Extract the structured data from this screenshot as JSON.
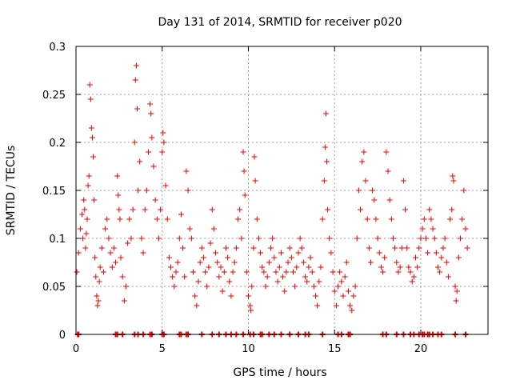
{
  "chart_data": {
    "type": "scatter",
    "title": "Day 131 of 2014, SRMTID for receiver p020",
    "xlabel": "GPS time / hours",
    "ylabel": "SRMTID / TECUs",
    "xlim": [
      0,
      23.9
    ],
    "ylim": [
      0,
      0.3
    ],
    "xticks": [
      0,
      5,
      10,
      15,
      20
    ],
    "xtick_labels": [
      "0",
      "5",
      "10",
      "15",
      "20"
    ],
    "yticks": [
      0,
      0.05,
      0.1,
      0.15,
      0.2,
      0.25,
      0.3
    ],
    "ytick_labels": [
      "0",
      "0.05",
      "0.1",
      "0.15",
      "0.2",
      "0.25",
      "0.3"
    ],
    "grid": true,
    "marker": "+",
    "color": "#ee0000",
    "series": [
      {
        "name": "SRMTID",
        "points": [
          [
            0.05,
            0.065
          ],
          [
            0.15,
            0.085
          ],
          [
            0.25,
            0.11
          ],
          [
            0.35,
            0.125
          ],
          [
            0.4,
            0.1
          ],
          [
            0.45,
            0.14
          ],
          [
            0.5,
            0.13
          ],
          [
            0.55,
            0.09
          ],
          [
            0.6,
            0.105
          ],
          [
            0.65,
            0.12
          ],
          [
            0.7,
            0.155
          ],
          [
            0.75,
            0.165
          ],
          [
            0.8,
            0.26
          ],
          [
            0.85,
            0.245
          ],
          [
            0.9,
            0.215
          ],
          [
            0.95,
            0.205
          ],
          [
            1.0,
            0.185
          ],
          [
            1.05,
            0.14
          ],
          [
            1.1,
            0.08
          ],
          [
            1.15,
            0.06
          ],
          [
            1.2,
            0.04
          ],
          [
            1.25,
            0.03
          ],
          [
            1.3,
            0.035
          ],
          [
            1.35,
            0.055
          ],
          [
            1.4,
            0.07
          ],
          [
            1.5,
            0.09
          ],
          [
            1.6,
            0.065
          ],
          [
            1.7,
            0.11
          ],
          [
            1.8,
            0.12
          ],
          [
            1.9,
            0.1
          ],
          [
            2.0,
            0.085
          ],
          [
            2.1,
            0.07
          ],
          [
            2.2,
            0.09
          ],
          [
            2.3,
            0.075
          ],
          [
            2.4,
            0.165
          ],
          [
            2.45,
            0.145
          ],
          [
            2.5,
            0.13
          ],
          [
            2.55,
            0.12
          ],
          [
            2.6,
            0.08
          ],
          [
            2.7,
            0.06
          ],
          [
            2.8,
            0.035
          ],
          [
            2.9,
            0.05
          ],
          [
            3.0,
            0.095
          ],
          [
            3.1,
            0.12
          ],
          [
            3.2,
            0.1
          ],
          [
            3.3,
            0.13
          ],
          [
            3.4,
            0.2
          ],
          [
            3.45,
            0.265
          ],
          [
            3.5,
            0.28
          ],
          [
            3.55,
            0.235
          ],
          [
            3.6,
            0.15
          ],
          [
            3.7,
            0.18
          ],
          [
            3.8,
            0.1
          ],
          [
            3.9,
            0.085
          ],
          [
            4.0,
            0.13
          ],
          [
            4.1,
            0.15
          ],
          [
            4.2,
            0.19
          ],
          [
            4.3,
            0.24
          ],
          [
            4.35,
            0.23
          ],
          [
            4.4,
            0.205
          ],
          [
            4.5,
            0.175
          ],
          [
            4.6,
            0.14
          ],
          [
            4.7,
            0.12
          ],
          [
            4.8,
            0.1
          ],
          [
            4.9,
            0.13
          ],
          [
            5.0,
            0.19
          ],
          [
            5.05,
            0.21
          ],
          [
            5.1,
            0.2
          ],
          [
            5.2,
            0.155
          ],
          [
            5.3,
            0.12
          ],
          [
            5.4,
            0.08
          ],
          [
            5.5,
            0.07
          ],
          [
            5.6,
            0.06
          ],
          [
            5.7,
            0.05
          ],
          [
            5.8,
            0.065
          ],
          [
            5.9,
            0.075
          ],
          [
            6.0,
            0.1
          ],
          [
            6.1,
            0.125
          ],
          [
            6.2,
            0.09
          ],
          [
            6.3,
            0.06
          ],
          [
            6.4,
            0.17
          ],
          [
            6.5,
            0.15
          ],
          [
            6.6,
            0.11
          ],
          [
            6.7,
            0.1
          ],
          [
            6.8,
            0.065
          ],
          [
            6.9,
            0.04
          ],
          [
            7.0,
            0.03
          ],
          [
            7.1,
            0.055
          ],
          [
            7.2,
            0.075
          ],
          [
            7.3,
            0.09
          ],
          [
            7.4,
            0.08
          ],
          [
            7.5,
            0.065
          ],
          [
            7.6,
            0.05
          ],
          [
            7.7,
            0.07
          ],
          [
            7.8,
            0.095
          ],
          [
            7.9,
            0.13
          ],
          [
            8.0,
            0.11
          ],
          [
            8.1,
            0.085
          ],
          [
            8.2,
            0.075
          ],
          [
            8.3,
            0.06
          ],
          [
            8.4,
            0.07
          ],
          [
            8.5,
            0.045
          ],
          [
            8.6,
            0.065
          ],
          [
            8.7,
            0.09
          ],
          [
            8.8,
            0.08
          ],
          [
            8.9,
            0.055
          ],
          [
            9.0,
            0.04
          ],
          [
            9.1,
            0.065
          ],
          [
            9.2,
            0.075
          ],
          [
            9.3,
            0.09
          ],
          [
            9.4,
            0.12
          ],
          [
            9.5,
            0.13
          ],
          [
            9.6,
            0.1
          ],
          [
            9.7,
            0.19
          ],
          [
            9.75,
            0.17
          ],
          [
            9.8,
            0.145
          ],
          [
            9.9,
            0.065
          ],
          [
            10.0,
            0.04
          ],
          [
            10.1,
            0.03
          ],
          [
            10.15,
            0.025
          ],
          [
            10.2,
            0.05
          ],
          [
            10.3,
            0.09
          ],
          [
            10.35,
            0.185
          ],
          [
            10.4,
            0.16
          ],
          [
            10.5,
            0.12
          ],
          [
            10.6,
            0.1
          ],
          [
            10.7,
            0.085
          ],
          [
            10.8,
            0.07
          ],
          [
            10.9,
            0.065
          ],
          [
            11.0,
            0.05
          ],
          [
            11.1,
            0.06
          ],
          [
            11.2,
            0.075
          ],
          [
            11.3,
            0.09
          ],
          [
            11.4,
            0.1
          ],
          [
            11.5,
            0.08
          ],
          [
            11.6,
            0.065
          ],
          [
            11.7,
            0.055
          ],
          [
            11.8,
            0.07
          ],
          [
            11.9,
            0.085
          ],
          [
            12.0,
            0.06
          ],
          [
            12.1,
            0.045
          ],
          [
            12.2,
            0.065
          ],
          [
            12.3,
            0.075
          ],
          [
            12.4,
            0.09
          ],
          [
            12.5,
            0.08
          ],
          [
            12.6,
            0.065
          ],
          [
            12.7,
            0.05
          ],
          [
            12.8,
            0.07
          ],
          [
            12.9,
            0.085
          ],
          [
            13.0,
            0.1
          ],
          [
            13.1,
            0.09
          ],
          [
            13.2,
            0.075
          ],
          [
            13.3,
            0.06
          ],
          [
            13.4,
            0.055
          ],
          [
            13.5,
            0.07
          ],
          [
            13.6,
            0.08
          ],
          [
            13.7,
            0.065
          ],
          [
            13.8,
            0.05
          ],
          [
            13.9,
            0.04
          ],
          [
            14.0,
            0.03
          ],
          [
            14.1,
            0.055
          ],
          [
            14.2,
            0.07
          ],
          [
            14.3,
            0.12
          ],
          [
            14.4,
            0.16
          ],
          [
            14.45,
            0.195
          ],
          [
            14.5,
            0.23
          ],
          [
            14.55,
            0.18
          ],
          [
            14.6,
            0.13
          ],
          [
            14.7,
            0.1
          ],
          [
            14.8,
            0.085
          ],
          [
            14.9,
            0.065
          ],
          [
            15.0,
            0.045
          ],
          [
            15.1,
            0.03
          ],
          [
            15.2,
            0.05
          ],
          [
            15.3,
            0.065
          ],
          [
            15.4,
            0.055
          ],
          [
            15.5,
            0.04
          ],
          [
            15.6,
            0.06
          ],
          [
            15.7,
            0.075
          ],
          [
            15.8,
            0.045
          ],
          [
            15.9,
            0.03
          ],
          [
            16.0,
            0.025
          ],
          [
            16.1,
            0.04
          ],
          [
            16.2,
            0.05
          ],
          [
            16.3,
            0.1
          ],
          [
            16.4,
            0.15
          ],
          [
            16.5,
            0.13
          ],
          [
            16.6,
            0.18
          ],
          [
            16.7,
            0.19
          ],
          [
            16.8,
            0.16
          ],
          [
            16.9,
            0.12
          ],
          [
            17.0,
            0.09
          ],
          [
            17.1,
            0.075
          ],
          [
            17.2,
            0.15
          ],
          [
            17.3,
            0.14
          ],
          [
            17.4,
            0.12
          ],
          [
            17.5,
            0.1
          ],
          [
            17.6,
            0.085
          ],
          [
            17.7,
            0.07
          ],
          [
            17.8,
            0.065
          ],
          [
            17.9,
            0.08
          ],
          [
            18.0,
            0.19
          ],
          [
            18.1,
            0.17
          ],
          [
            18.2,
            0.14
          ],
          [
            18.3,
            0.12
          ],
          [
            18.4,
            0.1
          ],
          [
            18.5,
            0.09
          ],
          [
            18.6,
            0.075
          ],
          [
            18.7,
            0.065
          ],
          [
            18.8,
            0.07
          ],
          [
            18.9,
            0.09
          ],
          [
            19.0,
            0.16
          ],
          [
            19.1,
            0.13
          ],
          [
            19.2,
            0.09
          ],
          [
            19.3,
            0.07
          ],
          [
            19.4,
            0.065
          ],
          [
            19.5,
            0.055
          ],
          [
            19.6,
            0.06
          ],
          [
            19.7,
            0.08
          ],
          [
            19.8,
            0.07
          ],
          [
            19.9,
            0.09
          ],
          [
            20.0,
            0.1
          ],
          [
            20.1,
            0.11
          ],
          [
            20.2,
            0.12
          ],
          [
            20.3,
            0.1
          ],
          [
            20.4,
            0.085
          ],
          [
            20.5,
            0.13
          ],
          [
            20.6,
            0.12
          ],
          [
            20.7,
            0.11
          ],
          [
            20.8,
            0.1
          ],
          [
            20.9,
            0.085
          ],
          [
            21.0,
            0.07
          ],
          [
            21.1,
            0.065
          ],
          [
            21.2,
            0.08
          ],
          [
            21.3,
            0.09
          ],
          [
            21.4,
            0.1
          ],
          [
            21.5,
            0.075
          ],
          [
            21.6,
            0.06
          ],
          [
            21.7,
            0.12
          ],
          [
            21.8,
            0.13
          ],
          [
            21.85,
            0.165
          ],
          [
            21.9,
            0.16
          ],
          [
            22.0,
            0.05
          ],
          [
            22.05,
            0.035
          ],
          [
            22.1,
            0.045
          ],
          [
            22.2,
            0.08
          ],
          [
            22.3,
            0.1
          ],
          [
            22.4,
            0.12
          ],
          [
            22.5,
            0.15
          ],
          [
            22.6,
            0.11
          ],
          [
            22.7,
            0.09
          ]
        ],
        "zero_points": [
          0.1,
          0.15,
          2.3,
          2.4,
          2.7,
          3.4,
          3.6,
          3.9,
          4.3,
          4.4,
          5.0,
          5.1,
          6.0,
          6.1,
          6.4,
          6.5,
          7.3,
          7.9,
          8.3,
          8.7,
          9.0,
          9.3,
          9.7,
          10.1,
          10.3,
          10.7,
          10.8,
          11.2,
          11.5,
          11.9,
          12.4,
          12.9,
          13.3,
          13.5,
          14.3,
          15.2,
          15.4,
          15.8,
          15.9,
          17.8,
          18.0,
          18.6,
          19.0,
          19.4,
          19.6,
          19.9,
          20.1,
          20.2,
          20.4,
          20.5,
          20.7,
          21.0,
          21.2,
          22.0,
          22.6
        ]
      }
    ]
  }
}
